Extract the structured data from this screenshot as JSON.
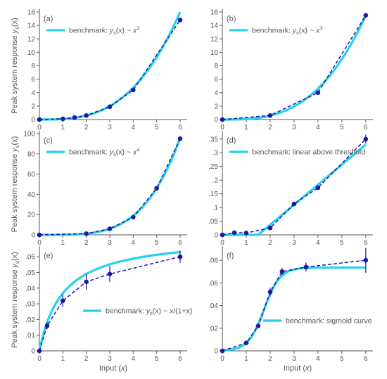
{
  "figure": {
    "ylabel_pre": "Peak system response ",
    "ylabel_var": "y",
    "ylabel_sub": "s",
    "ylabel_post": "(x)",
    "xlabel_pre": "Input (",
    "xlabel_var": "x",
    "xlabel_post": ")",
    "colors": {
      "benchmark": "#22d3ee",
      "data": "#1a1aaa",
      "axis": "#555555"
    }
  },
  "chart_data": [
    {
      "panel": "(a)",
      "type": "line",
      "xlim": [
        0,
        6.3
      ],
      "ylim": [
        0,
        16
      ],
      "xticks": [
        0,
        1,
        2,
        3,
        4,
        5,
        6
      ],
      "yticks": [
        0,
        2,
        4,
        6,
        8,
        10,
        12,
        14,
        16
      ],
      "legend": {
        "parts": [
          "benchmark: ",
          "y",
          "s",
          "(x) ~ ",
          "x",
          "3"
        ]
      },
      "benchmark": {
        "kind": "cubic",
        "a": 0.0741
      },
      "data": {
        "x": [
          0,
          1,
          1.5,
          2,
          3,
          4,
          6
        ],
        "y": [
          0,
          0.1,
          0.3,
          0.6,
          1.9,
          4.4,
          14.8
        ],
        "err": []
      }
    },
    {
      "panel": "(b)",
      "type": "line",
      "xlim": [
        0,
        6.3
      ],
      "ylim": [
        0,
        16
      ],
      "xticks": [
        0,
        1,
        2,
        3,
        4,
        5,
        6
      ],
      "yticks": [
        0,
        2,
        4,
        6,
        8,
        10,
        12,
        14,
        16
      ],
      "legend": {
        "parts": [
          "benchmark: ",
          "y",
          "s",
          "(x) ~ ",
          "x",
          "3"
        ]
      },
      "benchmark": {
        "kind": "cubic",
        "a": 0.0718
      },
      "data": {
        "x": [
          0,
          2,
          4,
          6
        ],
        "y": [
          0,
          0.6,
          4.0,
          15.5
        ],
        "err": []
      }
    },
    {
      "panel": "(c)",
      "type": "line",
      "xlim": [
        0,
        6.3
      ],
      "ylim": [
        0,
        100
      ],
      "xticks": [
        0,
        1,
        2,
        3,
        4,
        5,
        6
      ],
      "yticks": [
        0,
        20,
        40,
        60,
        80,
        100
      ],
      "legend": {
        "parts": [
          "benchmark: ",
          "y",
          "s",
          "(x) ~ ",
          "x",
          "4"
        ]
      },
      "benchmark": {
        "kind": "quartic",
        "a": 0.0737
      },
      "data": {
        "x": [
          0,
          2,
          3,
          4,
          5,
          6
        ],
        "y": [
          0,
          1.2,
          6.0,
          17.5,
          46,
          95
        ],
        "err": []
      }
    },
    {
      "panel": "(d)",
      "type": "line",
      "xlim": [
        0,
        6.3
      ],
      "ylim": [
        0,
        0.37
      ],
      "xticks": [
        0,
        1,
        2,
        3,
        4,
        5,
        6
      ],
      "yticks": [
        0,
        0.05,
        0.1,
        0.15,
        0.2,
        0.25,
        0.3,
        0.35
      ],
      "legend": {
        "parts": [
          "benchmark: linear above threshold"
        ]
      },
      "benchmark": {
        "kind": "threshold",
        "x0": 1.5,
        "slope": 0.0733
      },
      "data": {
        "x": [
          0,
          0.5,
          1,
          2,
          3,
          4,
          6
        ],
        "y": [
          0,
          0.008,
          0.007,
          0.025,
          0.113,
          0.172,
          0.35
        ],
        "err": [
          0,
          0.004,
          0.003,
          0.004,
          0.004,
          0.008,
          0.016
        ]
      }
    },
    {
      "panel": "(e)",
      "type": "line",
      "xlim": [
        0,
        6.3
      ],
      "ylim": [
        0,
        0.065
      ],
      "xticks": [
        0,
        1,
        2,
        3,
        4,
        5,
        6
      ],
      "yticks": [
        0,
        0.01,
        0.02,
        0.03,
        0.04,
        0.05,
        0.06
      ],
      "legend": {
        "parts": [
          "benchmark: ",
          "y",
          "s",
          "(x) ~ x/(1+x)"
        ]
      },
      "benchmark": {
        "kind": "saturating",
        "a": 0.0735
      },
      "data": {
        "x": [
          0,
          0.33,
          1,
          2,
          3,
          6
        ],
        "y": [
          0,
          0.016,
          0.032,
          0.044,
          0.049,
          0.06
        ],
        "err": [
          0,
          0.002,
          0.004,
          0.005,
          0.005,
          0.004
        ]
      }
    },
    {
      "panel": "(f)",
      "type": "line",
      "xlim": [
        0,
        6.3
      ],
      "ylim": [
        0,
        0.09
      ],
      "xticks": [
        0,
        1,
        2,
        3,
        4,
        5,
        6
      ],
      "yticks": [
        0,
        0.02,
        0.04,
        0.06,
        0.08
      ],
      "legend": {
        "parts": [
          "benchmark: sigmoid curve"
        ]
      },
      "benchmark": {
        "kind": "sigmoid",
        "max": 0.0735,
        "x0": 1.75,
        "k": 3.0
      },
      "data": {
        "x": [
          0,
          1,
          1.5,
          2,
          2.5,
          3.5,
          6
        ],
        "y": [
          0,
          0.007,
          0.022,
          0.052,
          0.07,
          0.074,
          0.08
        ],
        "err": [
          0,
          0.001,
          0.002,
          0.004,
          0.003,
          0.004,
          0.011
        ]
      }
    }
  ]
}
